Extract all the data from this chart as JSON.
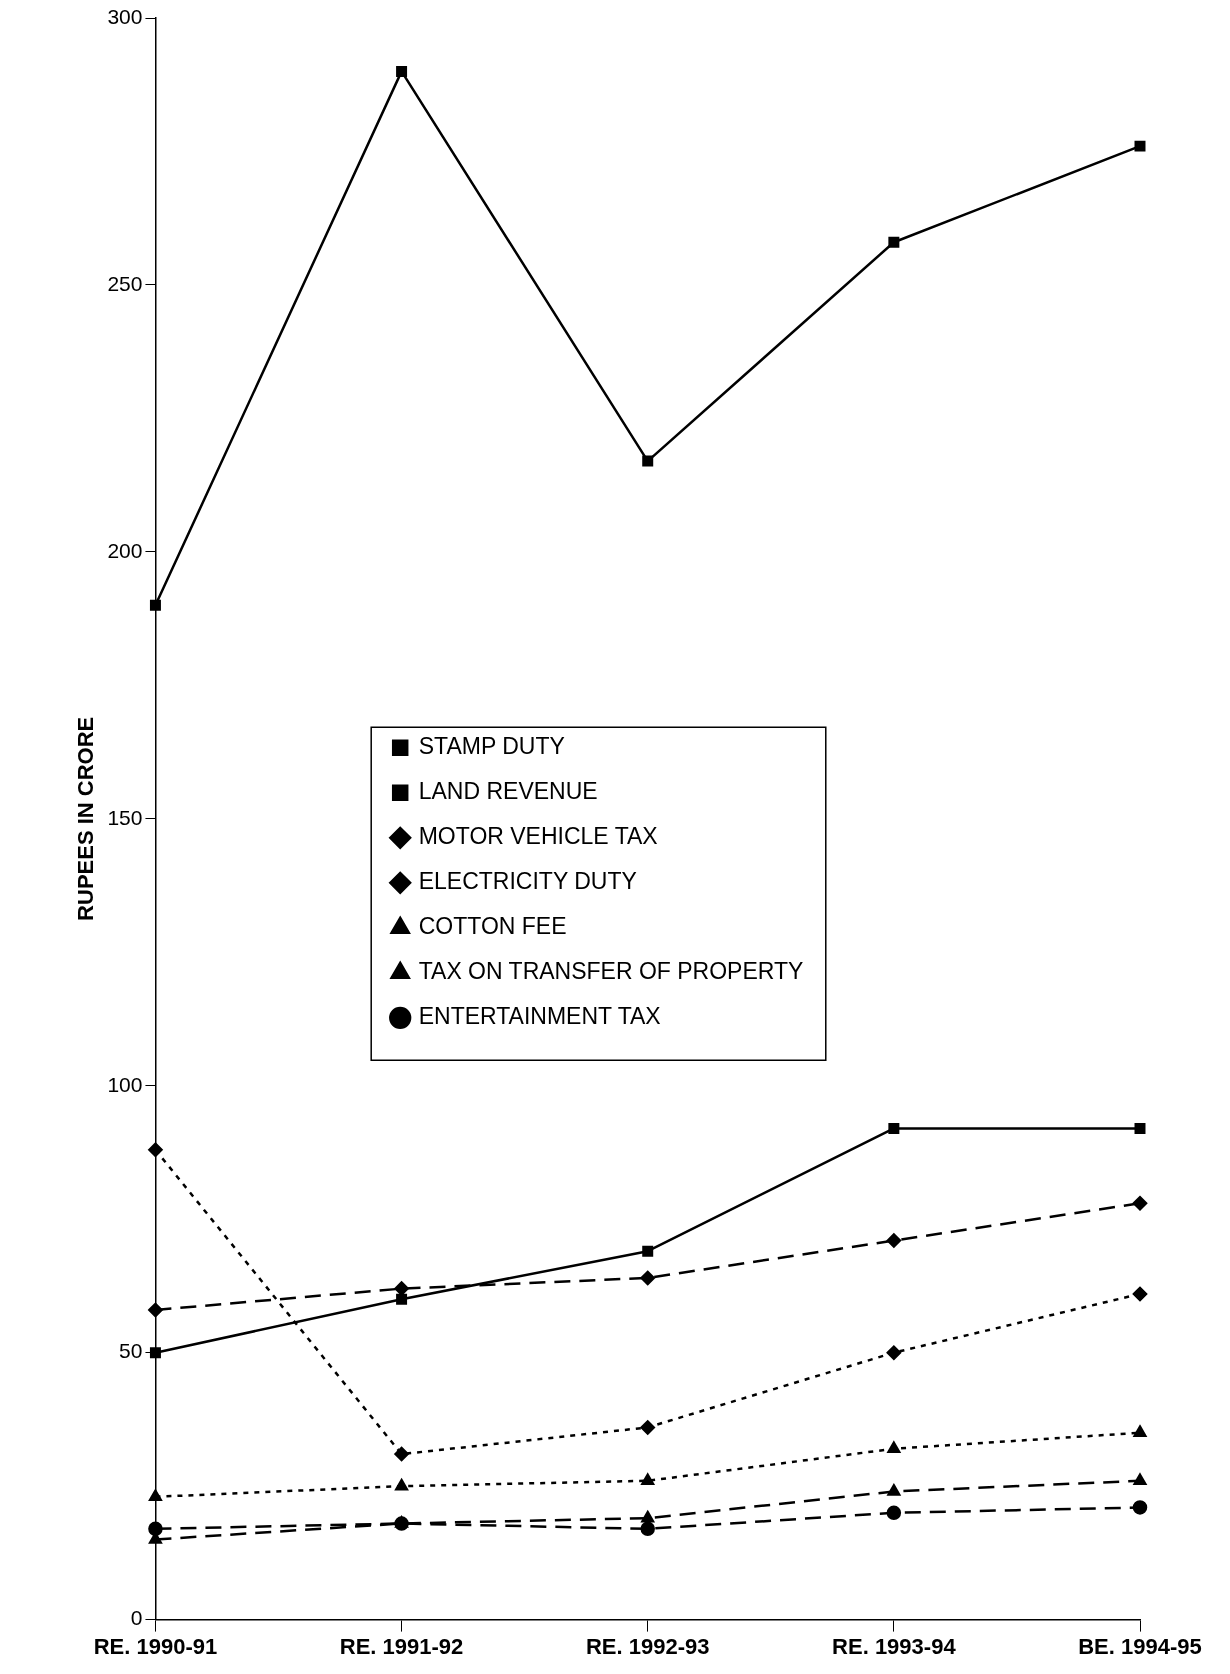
{
  "chart_data": {
    "type": "line",
    "ylabel": "RUPEES IN CRORE",
    "categories": [
      "RE. 1990-91",
      "RE. 1991-92",
      "RE. 1992-93",
      "RE. 1993-94",
      "BE. 1994-95"
    ],
    "ylim": [
      0,
      300
    ],
    "yticks": [
      0,
      50,
      100,
      150,
      200,
      250,
      300
    ],
    "grid": false,
    "legend": "center",
    "series": [
      {
        "name": "STAMP DUTY",
        "color": "#000000",
        "marker": "square",
        "line_style": "solid",
        "values": [
          190,
          290,
          217,
          258,
          276
        ]
      },
      {
        "name": "LAND REVENUE",
        "color": "#000000",
        "marker": "square",
        "line_style": "solid",
        "values": [
          50,
          60,
          69,
          92,
          92
        ]
      },
      {
        "name": "MOTOR VEHICLE TAX",
        "color": "#000000",
        "marker": "diamond",
        "line_style": "dashed",
        "values": [
          58,
          62,
          64,
          71,
          78
        ]
      },
      {
        "name": "ELECTRICITY DUTY",
        "color": "#000000",
        "marker": "diamond",
        "line_style": "dotted",
        "values": [
          88,
          31,
          36,
          50,
          61
        ]
      },
      {
        "name": "COTTON FEE",
        "color": "#000000",
        "marker": "triangle",
        "line_style": "dotted",
        "values": [
          23,
          25,
          26,
          32,
          35
        ]
      },
      {
        "name": "TAX ON TRANSFER OF PROPERTY",
        "color": "#000000",
        "marker": "triangle",
        "line_style": "dashed",
        "values": [
          15,
          18,
          19,
          24,
          26
        ]
      },
      {
        "name": "ENTERTAINMENT TAX",
        "color": "#000000",
        "marker": "circle",
        "line_style": "dashed",
        "values": [
          17,
          18,
          17,
          20,
          21
        ]
      }
    ]
  }
}
